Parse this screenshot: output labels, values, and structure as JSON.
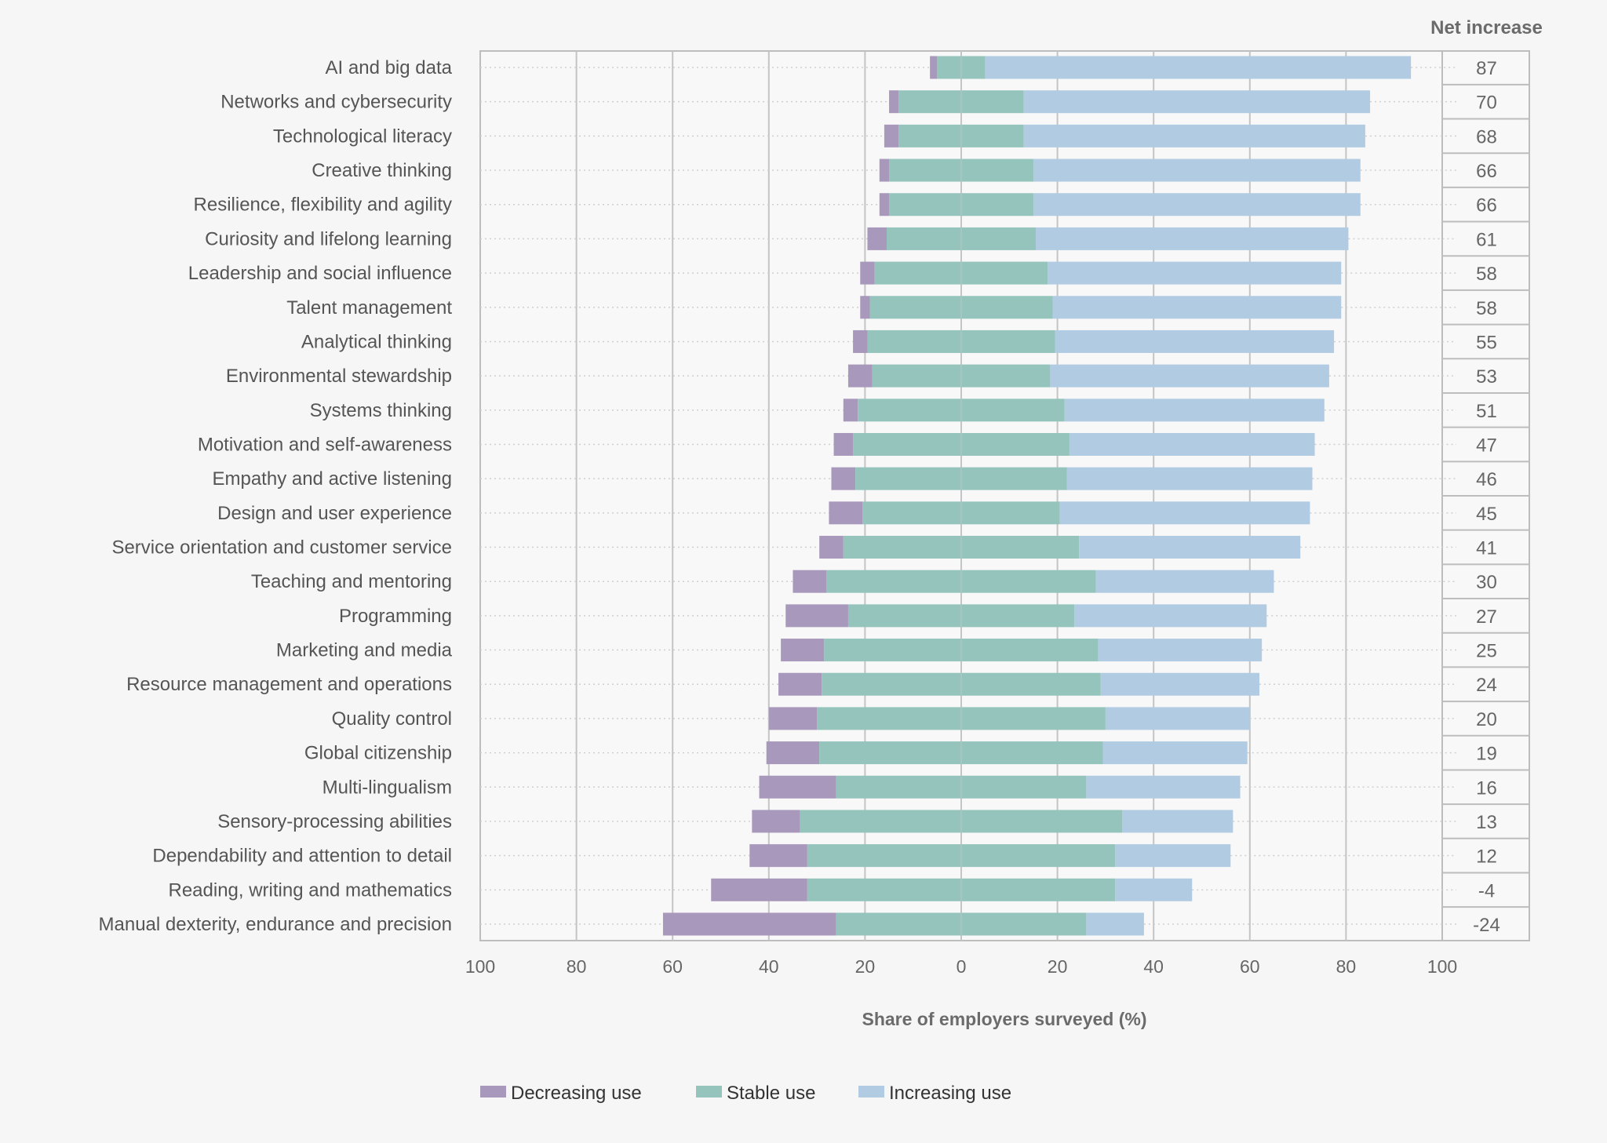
{
  "chart_data": {
    "type": "bar",
    "orientation": "horizontal",
    "stacking": "diverging",
    "xlabel": "Share of employers surveyed (%)",
    "xlim": [
      -100,
      100
    ],
    "x_ticks": [
      "100",
      "80",
      "60",
      "40",
      "20",
      "0",
      "20",
      "40",
      "60",
      "80",
      "100"
    ],
    "grid": "vertical",
    "legend_position": "bottom",
    "net_header": "Net increase",
    "categories": [
      "AI and big data",
      "Networks and cybersecurity",
      "Technological literacy",
      "Creative thinking",
      "Resilience, flexibility and agility",
      "Curiosity and lifelong learning",
      "Leadership and social influence",
      "Talent management",
      "Analytical thinking",
      "Environmental stewardship",
      "Systems thinking",
      "Motivation and self-awareness",
      "Empathy and active listening",
      "Design and user experience",
      "Service orientation and customer service",
      "Teaching and mentoring",
      "Programming",
      "Marketing and media",
      "Resource management and operations",
      "Quality control",
      "Global citizenship",
      "Multi-lingualism",
      "Sensory-processing abilities",
      "Dependability and attention to detail",
      "Reading, writing and mathematics",
      "Manual dexterity, endurance and precision"
    ],
    "series": [
      {
        "name": "Decreasing use",
        "color": "#a898bb",
        "values": [
          1.5,
          2,
          3,
          2,
          2,
          4,
          3,
          2,
          3,
          5,
          3,
          4,
          5,
          7,
          5,
          7,
          13,
          9,
          9,
          10,
          11,
          16,
          10,
          12,
          20,
          36
        ]
      },
      {
        "name": "Stable use",
        "color": "#94c4bc",
        "values": [
          10,
          26,
          26,
          30,
          30,
          31,
          36,
          38,
          39,
          37,
          43,
          45,
          44,
          41,
          49,
          56,
          47,
          57,
          58,
          60,
          59,
          52,
          67,
          64,
          64,
          52
        ]
      },
      {
        "name": "Increasing use",
        "color": "#b1cce2",
        "values": [
          88.5,
          72,
          71,
          68,
          68,
          65,
          61,
          60,
          58,
          58,
          54,
          51,
          51,
          52,
          46,
          37,
          40,
          34,
          33,
          30,
          30,
          32,
          23,
          24,
          16,
          12
        ]
      }
    ],
    "net_increase": [
      "87",
      "70",
      "68",
      "66",
      "66",
      "61",
      "58",
      "58",
      "55",
      "53",
      "51",
      "47",
      "46",
      "45",
      "41",
      "30",
      "27",
      "25",
      "24",
      "20",
      "19",
      "16",
      "13",
      "12",
      "-4",
      "-24"
    ]
  }
}
